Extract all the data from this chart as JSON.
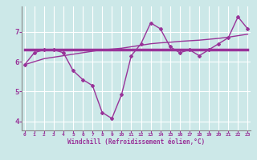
{
  "xlabel": "Windchill (Refroidissement éolien,°C)",
  "bg_color": "#cce8e8",
  "grid_color": "#ffffff",
  "line_color": "#993399",
  "x_values": [
    0,
    1,
    2,
    3,
    4,
    5,
    6,
    7,
    8,
    9,
    10,
    11,
    12,
    13,
    14,
    15,
    16,
    17,
    18,
    19,
    20,
    21,
    22,
    23
  ],
  "y_line1": [
    5.9,
    6.3,
    6.4,
    6.4,
    6.3,
    5.7,
    5.4,
    5.2,
    4.3,
    4.1,
    4.9,
    6.2,
    6.6,
    7.3,
    7.1,
    6.5,
    6.3,
    6.4,
    6.2,
    6.4,
    6.6,
    6.8,
    7.5,
    7.1
  ],
  "y_line2": [
    6.4,
    6.4,
    6.4,
    6.4,
    6.4,
    6.4,
    6.4,
    6.4,
    6.4,
    6.4,
    6.4,
    6.4,
    6.4,
    6.4,
    6.4,
    6.4,
    6.4,
    6.4,
    6.4,
    6.4,
    6.4,
    6.4,
    6.4,
    6.4
  ],
  "y_line3": [
    5.9,
    6.0,
    6.1,
    6.15,
    6.2,
    6.25,
    6.3,
    6.35,
    6.4,
    6.42,
    6.45,
    6.5,
    6.55,
    6.6,
    6.63,
    6.65,
    6.68,
    6.7,
    6.72,
    6.75,
    6.78,
    6.82,
    6.87,
    6.92
  ],
  "ylim": [
    3.7,
    7.85
  ],
  "xlim": [
    -0.3,
    23.3
  ],
  "yticks": [
    4,
    5,
    6,
    7
  ],
  "xticks": [
    0,
    1,
    2,
    3,
    4,
    5,
    6,
    7,
    8,
    9,
    10,
    11,
    12,
    13,
    14,
    15,
    16,
    17,
    18,
    19,
    20,
    21,
    22,
    23
  ]
}
